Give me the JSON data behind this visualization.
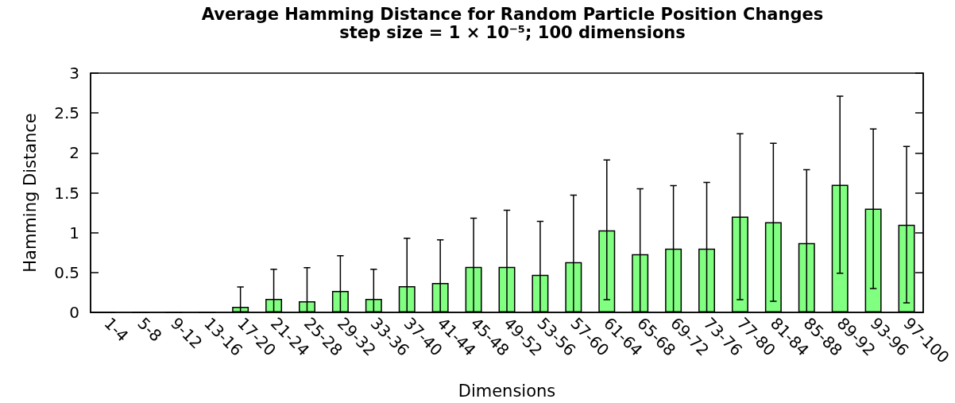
{
  "chart_data": {
    "type": "bar",
    "title": "Average Hamming Distance for Random Particle Position Changes",
    "subtitle": "step size = 1 × 10⁻⁵; 100 dimensions",
    "xlabel": "Dimensions",
    "ylabel": "Hamming Distance",
    "categories": [
      "1-4",
      "5-8",
      "9-12",
      "13-16",
      "17-20",
      "21-24",
      "25-28",
      "29-32",
      "33-36",
      "37-40",
      "41-44",
      "45-48",
      "49-52",
      "53-56",
      "57-60",
      "61-64",
      "65-68",
      "69-72",
      "73-76",
      "77-80",
      "81-84",
      "85-88",
      "89-92",
      "93-96",
      "97-100"
    ],
    "values": [
      0,
      0,
      0,
      0,
      0.07,
      0.17,
      0.14,
      0.27,
      0.17,
      0.33,
      0.37,
      0.57,
      0.57,
      0.47,
      0.63,
      1.03,
      0.73,
      0.8,
      0.8,
      1.2,
      1.13,
      0.87,
      1.6,
      1.3,
      1.1
    ],
    "errors": [
      null,
      null,
      null,
      null,
      [
        0,
        0.32
      ],
      [
        0,
        0.54
      ],
      [
        0,
        0.56
      ],
      [
        0,
        0.71
      ],
      [
        0,
        0.54
      ],
      [
        0,
        0.93
      ],
      [
        0,
        0.91
      ],
      [
        0,
        1.18
      ],
      [
        0,
        1.28
      ],
      [
        0,
        1.14
      ],
      [
        0,
        1.47
      ],
      [
        0.16,
        1.91
      ],
      [
        0,
        1.55
      ],
      [
        0,
        1.59
      ],
      [
        0,
        1.63
      ],
      [
        0.16,
        2.24
      ],
      [
        0.14,
        2.12
      ],
      [
        0,
        1.79
      ],
      [
        0.49,
        2.71
      ],
      [
        0.3,
        2.3
      ],
      [
        0.12,
        2.08
      ]
    ],
    "color": "#80ff80",
    "ylim": [
      0,
      3
    ],
    "yticks": [
      0,
      0.5,
      1,
      1.5,
      2,
      2.5,
      3
    ],
    "grid": false
  }
}
